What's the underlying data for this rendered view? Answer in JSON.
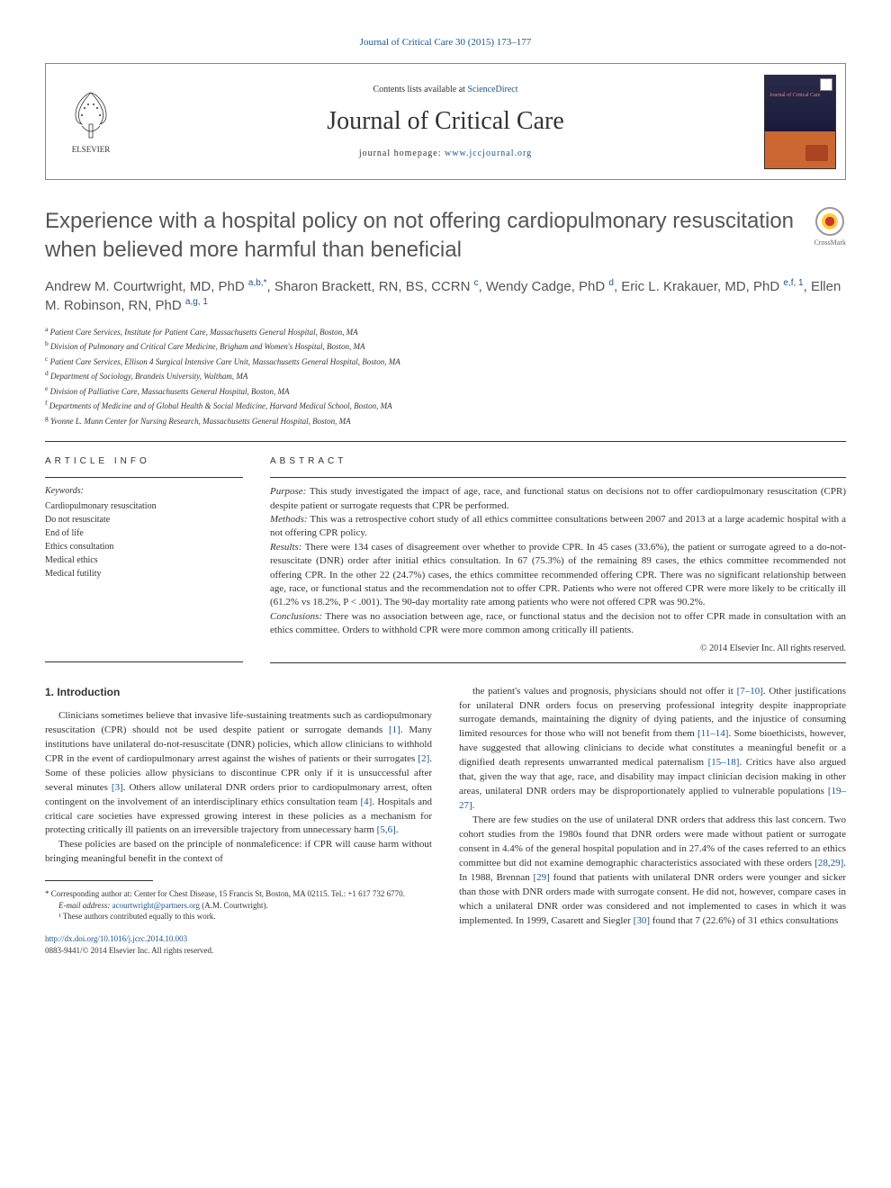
{
  "top_link": {
    "text": "Journal of Critical Care 30 (2015) 173–177",
    "href": "#"
  },
  "header": {
    "contents_text": "Contents lists available at ",
    "contents_link": "ScienceDirect",
    "journal_name": "Journal of Critical Care",
    "homepage_label": "journal homepage: ",
    "homepage_url": "www.jccjournal.org",
    "elsevier": "ELSEVIER",
    "cover_title": "Journal of\nCritical Care"
  },
  "crossmark": "CrossMark",
  "title": "Experience with a hospital policy on not offering cardiopulmonary resuscitation when believed more harmful than beneficial",
  "authors_html": "Andrew M. Courtwright, MD, PhD <sup><a href=\"#\">a,b,</a></sup><sup><a href=\"#\">*</a></sup>, Sharon Brackett, RN, BS, CCRN <sup><a href=\"#\">c</a></sup>, Wendy Cadge, PhD <sup><a href=\"#\">d</a></sup>, Eric L. Krakauer, MD, PhD <sup><a href=\"#\">e,f, 1</a></sup>, Ellen M. Robinson, RN, PhD <sup><a href=\"#\">a,g, 1</a></sup>",
  "affiliations": [
    {
      "sup": "a",
      "text": "Patient Care Services, Institute for Patient Care, Massachusetts General Hospital, Boston, MA"
    },
    {
      "sup": "b",
      "text": "Division of Pulmonary and Critical Care Medicine, Brigham and Women's Hospital, Boston, MA"
    },
    {
      "sup": "c",
      "text": "Patient Care Services, Ellison 4 Surgical Intensive Care Unit, Massachusetts General Hospital, Boston, MA"
    },
    {
      "sup": "d",
      "text": "Department of Sociology, Brandeis University, Waltham, MA"
    },
    {
      "sup": "e",
      "text": "Division of Palliative Care, Massachusetts General Hospital, Boston, MA"
    },
    {
      "sup": "f",
      "text": "Departments of Medicine and of Global Health & Social Medicine, Harvard Medical School, Boston, MA"
    },
    {
      "sup": "g",
      "text": "Yvonne L. Munn Center for Nursing Research, Massachusetts General Hospital, Boston, MA"
    }
  ],
  "article_info": {
    "heading": "ARTICLE INFO",
    "keywords_label": "Keywords:",
    "keywords": [
      "Cardiopulmonary resuscitation",
      "Do not resuscitate",
      "End of life",
      "Ethics consultation",
      "Medical ethics",
      "Medical futility"
    ]
  },
  "abstract": {
    "heading": "ABSTRACT",
    "sections": [
      {
        "label": "Purpose:",
        "text": "This study investigated the impact of age, race, and functional status on decisions not to offer cardiopulmonary resuscitation (CPR) despite patient or surrogate requests that CPR be performed."
      },
      {
        "label": "Methods:",
        "text": "This was a retrospective cohort study of all ethics committee consultations between 2007 and 2013 at a large academic hospital with a not offering CPR policy."
      },
      {
        "label": "Results:",
        "text": "There were 134 cases of disagreement over whether to provide CPR. In 45 cases (33.6%), the patient or surrogate agreed to a do-not-resuscitate (DNR) order after initial ethics consultation. In 67 (75.3%) of the remaining 89 cases, the ethics committee recommended not offering CPR. In the other 22 (24.7%) cases, the ethics committee recommended offering CPR. There was no significant relationship between age, race, or functional status and the recommendation not to offer CPR. Patients who were not offered CPR were more likely to be critically ill (61.2% vs 18.2%, P < .001). The 90-day mortality rate among patients who were not offered CPR was 90.2%."
      },
      {
        "label": "Conclusions:",
        "text": "There was no association between age, race, or functional status and the decision not to offer CPR made in consultation with an ethics committee. Orders to withhold CPR were more common among critically ill patients."
      }
    ],
    "copyright": "© 2014 Elsevier Inc. All rights reserved."
  },
  "body": {
    "section_num": "1.",
    "section_title": "Introduction",
    "col1": [
      "Clinicians sometimes believe that invasive life-sustaining treatments such as cardiopulmonary resuscitation (CPR) should not be used despite patient or surrogate demands <a href=\"#\">[1]</a>. Many institutions have unilateral do-not-resuscitate (DNR) policies, which allow clinicians to withhold CPR in the event of cardiopulmonary arrest against the wishes of patients or their surrogates <a href=\"#\">[2]</a>. Some of these policies allow physicians to discontinue CPR only if it is unsuccessful after several minutes <a href=\"#\">[3]</a>. Others allow unilateral DNR orders prior to cardiopulmonary arrest, often contingent on the involvement of an interdisciplinary ethics consultation team <a href=\"#\">[4]</a>. Hospitals and critical care societies have expressed growing interest in these policies as a mechanism for protecting critically ill patients on an irreversible trajectory from unnecessary harm <a href=\"#\">[5,6]</a>.",
      "These policies are based on the principle of nonmaleficence: if CPR will cause harm without bringing meaningful benefit in the context of"
    ],
    "col2": [
      "the patient's values and prognosis, physicians should not offer it <a href=\"#\">[7–10]</a>. Other justifications for unilateral DNR orders focus on preserving professional integrity despite inappropriate surrogate demands, maintaining the dignity of dying patients, and the injustice of consuming limited resources for those who will not benefit from them <a href=\"#\">[11–14]</a>. Some bioethicists, however, have suggested that allowing clinicians to decide what constitutes a meaningful benefit or a dignified death represents unwarranted medical paternalism <a href=\"#\">[15–18]</a>. Critics have also argued that, given the way that age, race, and disability may impact clinician decision making in other areas, unilateral DNR orders may be disproportionately applied to vulnerable populations <a href=\"#\">[19–27]</a>.",
      "There are few studies on the use of unilateral DNR orders that address this last concern. Two cohort studies from the 1980s found that DNR orders were made without patient or surrogate consent in 4.4% of the general hospital population and in 27.4% of the cases referred to an ethics committee but did not examine demographic characteristics associated with these orders <a href=\"#\">[28,29]</a>. In 1988, Brennan <a href=\"#\">[29]</a> found that patients with unilateral DNR orders were younger and sicker than those with DNR orders made with surrogate consent. He did not, however, compare cases in which a unilateral DNR order was considered and not implemented to cases in which it was implemented. In 1999, Casarett and Siegler <a href=\"#\">[30]</a> found that 7 (22.6%) of 31 ethics consultations"
    ]
  },
  "footer": {
    "corresponding": "* Corresponding author at: Center for Chest Disease, 15 Francis St, Boston, MA 02115. Tel.: +1 617 732 6770.",
    "email_label": "E-mail address:",
    "email": "acourtwright@partners.org",
    "email_suffix": "(A.M. Courtwright).",
    "note1": "¹ These authors contributed equally to this work.",
    "doi": "http://dx.doi.org/10.1016/j.jcrc.2014.10.003",
    "issn": "0883-9441/© 2014 Elsevier Inc. All rights reserved."
  },
  "colors": {
    "link": "#1a5490",
    "text": "#333333",
    "title_gray": "#555555",
    "border": "#888888"
  }
}
